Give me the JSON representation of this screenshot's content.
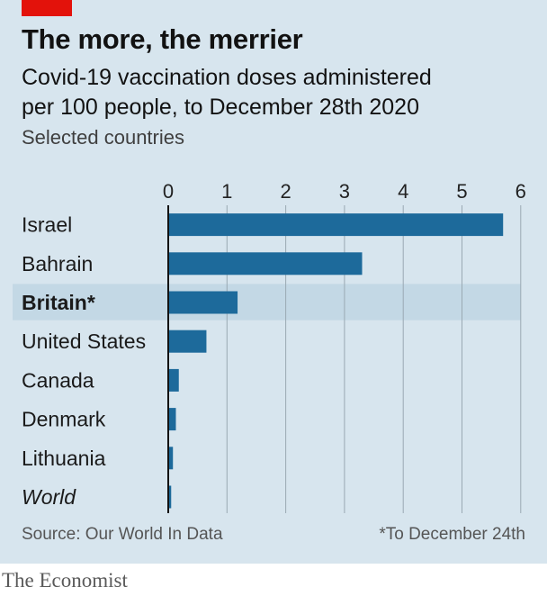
{
  "header": {
    "title": "The more, the merrier",
    "subtitle_line1": "Covid-19 vaccination doses administered",
    "subtitle_line2": "per 100 people, to December 28th 2020",
    "note": "Selected countries"
  },
  "footer": {
    "source": "Source: Our World In Data",
    "footnote": "*To December 24th",
    "brand": "The Economist"
  },
  "colors": {
    "bar": "#1d6a9b",
    "highlight_band": "#c3d8e5",
    "grid": "#9aa9b3",
    "axis": "#121212",
    "brand_red": "#e3120b"
  },
  "chart_data": {
    "type": "bar",
    "orientation": "horizontal",
    "categories": [
      "Israel",
      "Bahrain",
      "Britain*",
      "United States",
      "Canada",
      "Denmark",
      "Lithuania",
      "World"
    ],
    "values": [
      5.7,
      3.3,
      1.18,
      0.65,
      0.18,
      0.13,
      0.08,
      0.05
    ],
    "highlight": "Britain*",
    "bold_categories": [
      "Britain*"
    ],
    "italic_categories": [
      "World"
    ],
    "xlim": [
      0,
      6
    ],
    "xticks": [
      0,
      1,
      2,
      3,
      4,
      5,
      6
    ],
    "xtick_position": "top",
    "grid": true
  }
}
